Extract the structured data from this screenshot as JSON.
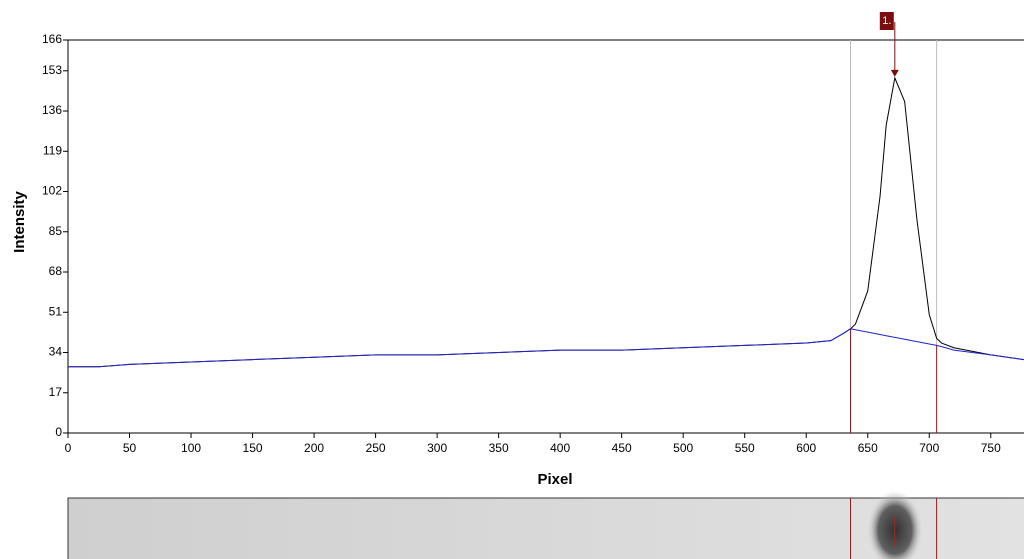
{
  "chart_data": {
    "type": "line",
    "x_label": "Pixel",
    "y_label": "Intensity",
    "x": [
      0,
      25,
      50,
      100,
      150,
      200,
      250,
      300,
      350,
      400,
      450,
      500,
      550,
      600,
      620,
      630,
      636,
      640,
      650,
      660,
      665,
      672,
      680,
      690,
      700,
      706,
      710,
      720,
      750,
      777
    ],
    "series": [
      {
        "color": "#000000",
        "values": [
          28,
          28,
          29,
          30,
          31,
          32,
          33,
          33,
          34,
          35,
          35,
          36,
          37,
          38,
          39,
          42,
          44,
          46,
          60,
          100,
          130,
          150,
          140,
          90,
          50,
          40,
          38,
          36,
          33,
          31
        ]
      },
      {
        "color": "#2222cc",
        "values": [
          28,
          28,
          29,
          30,
          31,
          32,
          33,
          33,
          34,
          35,
          35,
          36,
          37,
          38,
          39,
          42,
          44,
          43.6,
          42.6,
          41.6,
          41.1,
          40.4,
          39.6,
          38.6,
          37.6,
          37,
          36.5,
          35,
          33,
          31
        ]
      }
    ],
    "xlim": [
      0,
      777
    ],
    "ylim": [
      0,
      166
    ],
    "xticks": [
      0,
      50,
      100,
      150,
      200,
      250,
      300,
      350,
      400,
      450,
      500,
      550,
      600,
      650,
      700,
      750
    ],
    "yticks": [
      0,
      17,
      34,
      51,
      68,
      85,
      102,
      119,
      136,
      153,
      166
    ],
    "boundaries": [
      636,
      706
    ],
    "peaks": [
      {
        "label": "1.",
        "x": 672,
        "y": 150
      }
    ]
  }
}
